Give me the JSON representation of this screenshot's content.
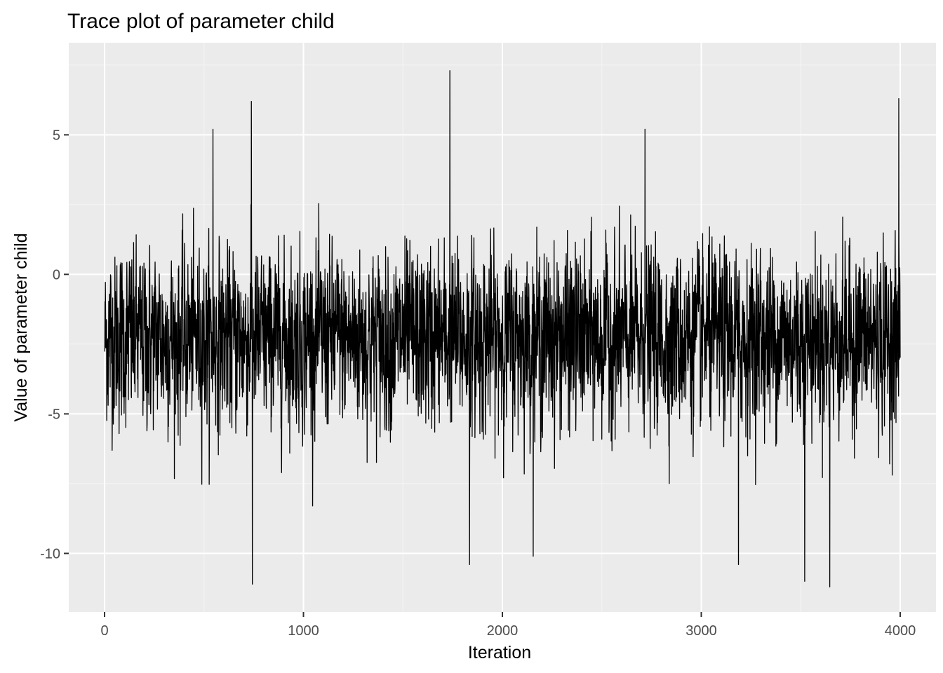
{
  "chart_data": {
    "type": "line",
    "title": "Trace plot of parameter child",
    "xlabel": "Iteration",
    "ylabel": "Value of parameter child",
    "xlim": [
      -180,
      4180
    ],
    "ylim": [
      -12.1,
      8.3
    ],
    "grid": true,
    "x_ticks": [
      0,
      1000,
      2000,
      3000,
      4000
    ],
    "x_tick_labels": [
      "0",
      "1000",
      "2000",
      "3000",
      "4000"
    ],
    "y_ticks": [
      -10,
      -5,
      0,
      5
    ],
    "y_tick_labels": [
      "-10",
      "-5",
      "0",
      "5"
    ],
    "x_minor_ticks": [
      500,
      1500,
      2500,
      3500
    ],
    "y_minor_ticks": [
      -7.5,
      -2.5,
      2.5,
      7.5
    ],
    "series": [
      {
        "color": "#000000",
        "n_points": 4000,
        "center": -2.3,
        "band_low": -5.2,
        "band_high": 0.8,
        "extremes": [
          {
            "x": 738,
            "y": 6.2
          },
          {
            "x": 743,
            "y": -11.1
          },
          {
            "x": 1736,
            "y": 7.3
          },
          {
            "x": 2717,
            "y": 5.2
          },
          {
            "x": 3520,
            "y": -11.0
          },
          {
            "x": 3646,
            "y": -11.2
          },
          {
            "x": 3993,
            "y": 6.3
          },
          {
            "x": 1835,
            "y": -10.4
          },
          {
            "x": 3187,
            "y": -10.4
          },
          {
            "x": 2155,
            "y": -10.1
          },
          {
            "x": 545,
            "y": 5.2
          }
        ]
      }
    ],
    "colors": {
      "panel_background": "#ebebeb",
      "grid_major": "#ffffff",
      "grid_minor": "#f5f5f5",
      "tick": "#333333",
      "line": "#000000"
    }
  }
}
